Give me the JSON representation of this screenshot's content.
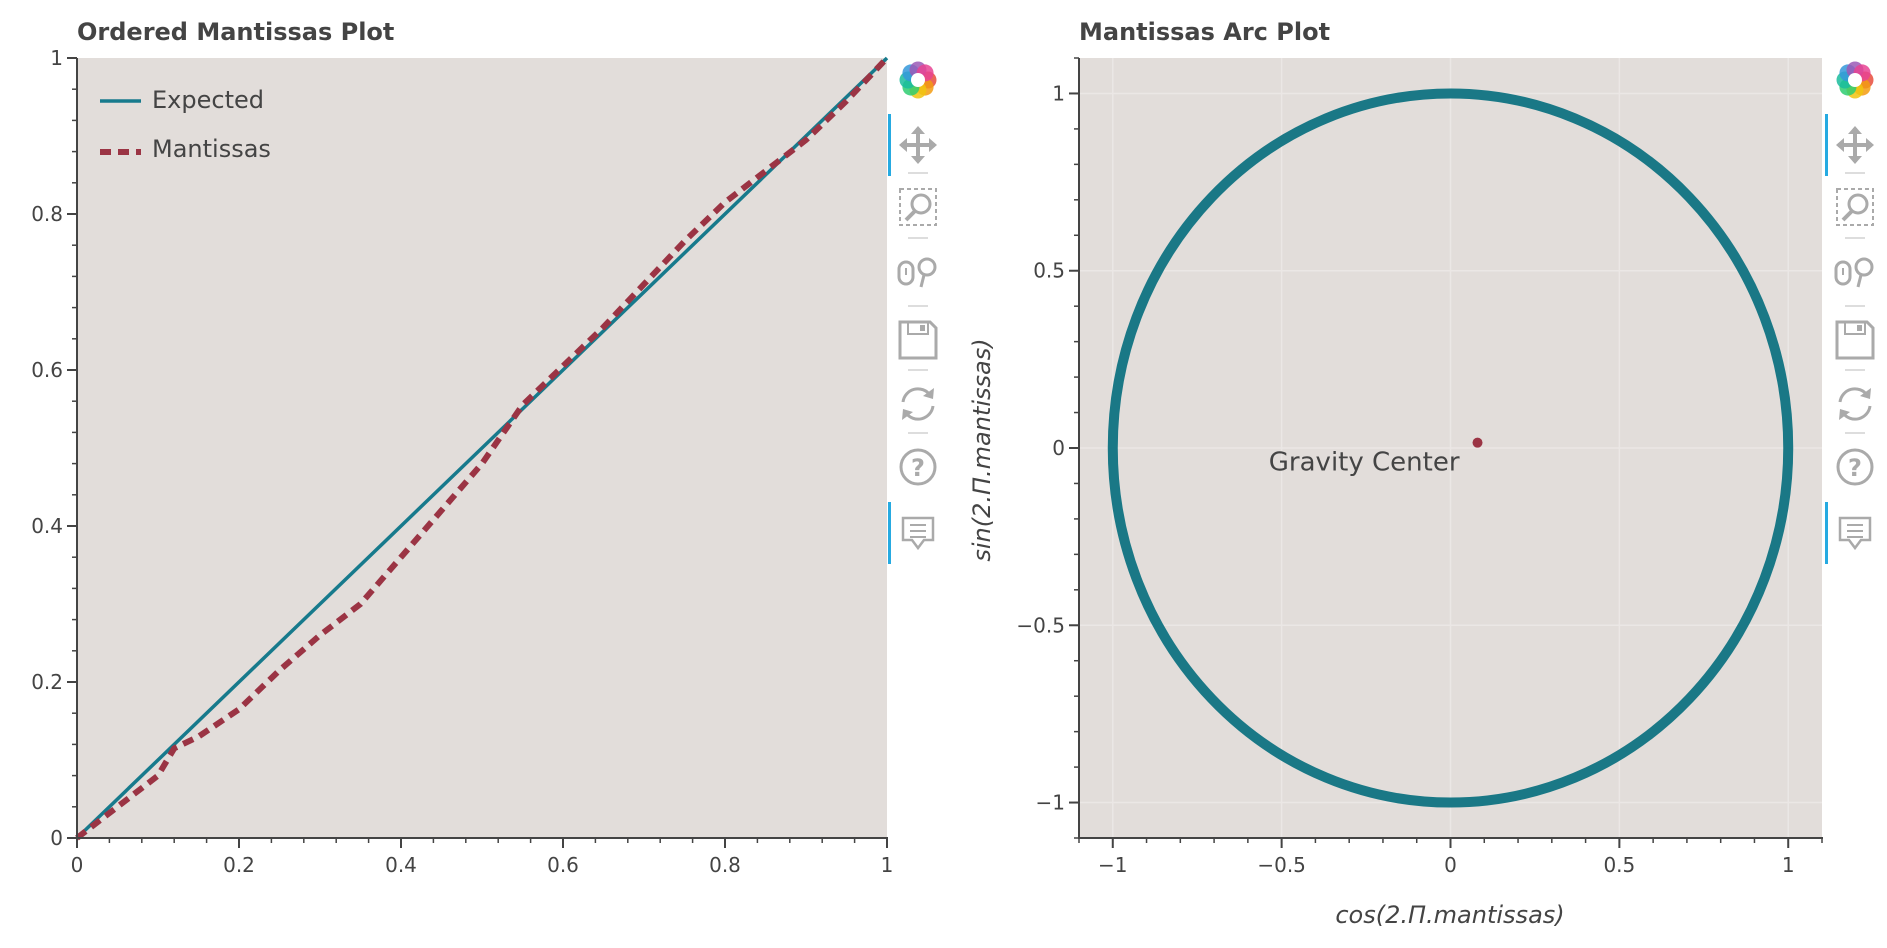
{
  "colors": {
    "background": "#e2ddda",
    "grid": "#ebe7e5",
    "expected": "#177a8c",
    "mantissas": "#9b3444",
    "circle": "#1a7886",
    "center": "#9b3444",
    "axis": "#444444",
    "tool_icon": "#aaaaaa",
    "tool_active": "#26aae1"
  },
  "toolbar": {
    "tools": [
      {
        "name": "bokeh-logo-icon",
        "active": false
      },
      {
        "name": "pan-icon",
        "active": true
      },
      {
        "name": "box-zoom-icon",
        "active": false
      },
      {
        "name": "wheel-zoom-icon",
        "active": false
      },
      {
        "name": "save-icon",
        "active": false
      },
      {
        "name": "reset-icon",
        "active": false
      },
      {
        "name": "help-icon",
        "active": false
      },
      {
        "name": "hover-icon",
        "active": true
      }
    ]
  },
  "chart_data": [
    {
      "type": "line",
      "title": "Ordered Mantissas Plot",
      "xlabel": "",
      "ylabel": "",
      "xlim": [
        0,
        1
      ],
      "ylim": [
        0,
        1
      ],
      "xticks": [
        "0",
        "0.2",
        "0.4",
        "0.6",
        "0.8",
        "1"
      ],
      "yticks": [
        "0",
        "0.2",
        "0.4",
        "0.6",
        "0.8",
        "1"
      ],
      "xtick_values": [
        0,
        0.2,
        0.4,
        0.6,
        0.8,
        1
      ],
      "ytick_values": [
        0,
        0.2,
        0.4,
        0.6,
        0.8,
        1
      ],
      "legend_position": "top-left",
      "series": [
        {
          "name": "Expected",
          "style": "solid",
          "x": [
            0,
            1
          ],
          "y": [
            0,
            1
          ]
        },
        {
          "name": "Mantissas",
          "style": "dashed",
          "x": [
            0,
            0.05,
            0.1,
            0.12,
            0.15,
            0.2,
            0.25,
            0.3,
            0.35,
            0.4,
            0.45,
            0.5,
            0.55,
            0.6,
            0.65,
            0.7,
            0.75,
            0.8,
            0.85,
            0.9,
            0.95,
            1
          ],
          "y": [
            0,
            0.04,
            0.08,
            0.115,
            0.13,
            0.165,
            0.215,
            0.26,
            0.3,
            0.36,
            0.42,
            0.48,
            0.555,
            0.605,
            0.655,
            0.71,
            0.765,
            0.815,
            0.855,
            0.895,
            0.945,
            1
          ]
        }
      ]
    },
    {
      "type": "scatter",
      "title": "Mantissas Arc Plot",
      "xlabel": "cos(2.Π.mantissas)",
      "ylabel": "sin(2.Π.mantissas)",
      "xlim": [
        -1.1,
        1.1
      ],
      "ylim": [
        -1.1,
        1.1
      ],
      "xticks": [
        "−1",
        "−0.5",
        "0",
        "0.5",
        "1"
      ],
      "yticks": [
        "−1",
        "−0.5",
        "0",
        "0.5",
        "1"
      ],
      "xtick_values": [
        -1,
        -0.5,
        0,
        0.5,
        1
      ],
      "ytick_values": [
        -1,
        -0.5,
        0,
        0.5,
        1
      ],
      "grid": true,
      "series": [
        {
          "name": "",
          "shape": "unit-circle",
          "radius": 1
        },
        {
          "name": "",
          "x": [
            0.08
          ],
          "y": [
            0.015
          ]
        }
      ],
      "annotations": [
        {
          "text": "Gravity Center",
          "x": 0.08,
          "y": 0.015
        }
      ]
    }
  ]
}
